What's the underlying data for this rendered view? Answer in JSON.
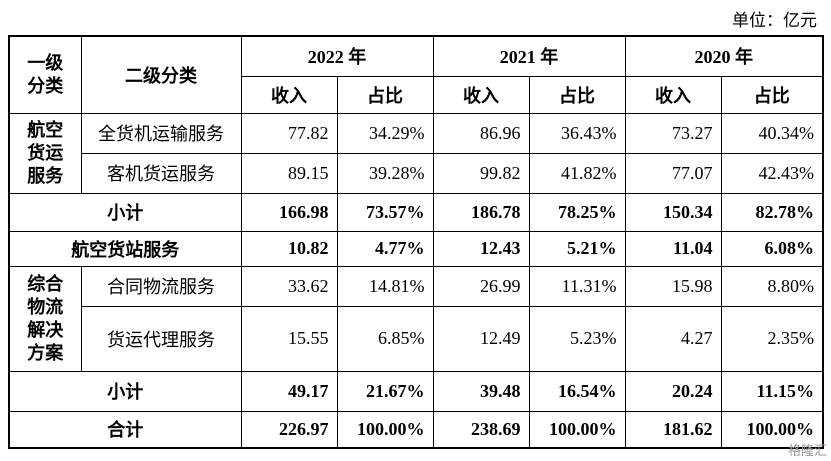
{
  "unit": "单位：亿元",
  "header": {
    "level1": "一级分类",
    "level2": "二级分类",
    "years": [
      "2022 年",
      "2021 年",
      "2020 年"
    ],
    "sub": [
      "收入",
      "占比",
      "收入",
      "占比",
      "收入",
      "占比"
    ]
  },
  "sections": [
    {
      "label": "航空货运服务",
      "rows": [
        {
          "name": "全货机运输服务",
          "cells": [
            "77.82",
            "34.29%",
            "86.96",
            "36.43%",
            "73.27",
            "40.34%"
          ]
        },
        {
          "name": "客机货运服务",
          "cells": [
            "89.15",
            "39.28%",
            "99.82",
            "41.82%",
            "77.07",
            "42.43%"
          ]
        }
      ],
      "subtotal": {
        "name": "小计",
        "cells": [
          "166.98",
          "73.57%",
          "186.78",
          "78.25%",
          "150.34",
          "82.78%"
        ]
      }
    },
    {
      "label": "航空货站服务",
      "cells": [
        "10.82",
        "4.77%",
        "12.43",
        "5.21%",
        "11.04",
        "6.08%"
      ]
    },
    {
      "label": "综合物流解决方案",
      "rows": [
        {
          "name": "合同物流服务",
          "cells": [
            "33.62",
            "14.81%",
            "26.99",
            "11.31%",
            "15.98",
            "8.80%"
          ]
        },
        {
          "name": "货运代理服务",
          "cells": [
            "15.55",
            "6.85%",
            "12.49",
            "5.23%",
            "4.27",
            "2.35%"
          ]
        }
      ],
      "subtotal": {
        "name": "小计",
        "cells": [
          "49.17",
          "21.67%",
          "39.48",
          "16.54%",
          "20.24",
          "11.15%"
        ]
      }
    }
  ],
  "total": {
    "name": "合计",
    "cells": [
      "226.97",
      "100.00%",
      "238.69",
      "100.00%",
      "181.62",
      "100.00%"
    ]
  },
  "watermark": "格隆汇"
}
